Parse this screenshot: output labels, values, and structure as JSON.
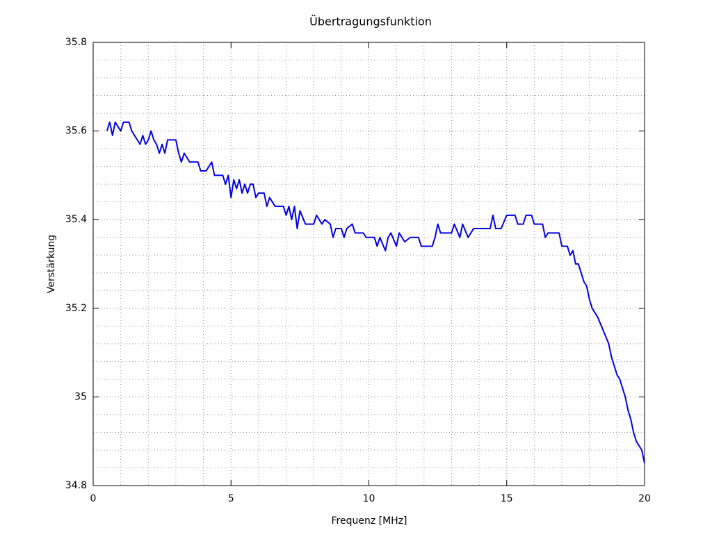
{
  "chart_data": {
    "type": "line",
    "title": "Übertragungsfunktion",
    "xlabel": "Frequenz [MHz]",
    "ylabel": "Verstärkung",
    "color": "#0000e6",
    "x": [
      0.5,
      0.6,
      0.7,
      0.8,
      0.9,
      1.0,
      1.1,
      1.2,
      1.3,
      1.4,
      1.5,
      1.6,
      1.7,
      1.8,
      1.9,
      2.0,
      2.1,
      2.2,
      2.3,
      2.4,
      2.5,
      2.6,
      2.7,
      3.0,
      3.1,
      3.2,
      3.3,
      3.5,
      3.8,
      3.9,
      4.1,
      4.3,
      4.4,
      4.7,
      4.8,
      4.9,
      5.0,
      5.1,
      5.2,
      5.3,
      5.4,
      5.5,
      5.6,
      5.7,
      5.8,
      5.9,
      6.0,
      6.2,
      6.3,
      6.4,
      6.6,
      6.9,
      7.0,
      7.1,
      7.2,
      7.3,
      7.4,
      7.5,
      7.7,
      8.0,
      8.1,
      8.3,
      8.4,
      8.6,
      8.7,
      8.8,
      9.0,
      9.1,
      9.2,
      9.4,
      9.5,
      9.8,
      9.9,
      10.2,
      10.3,
      10.4,
      10.6,
      10.7,
      10.8,
      11.0,
      11.1,
      11.3,
      11.5,
      11.8,
      11.9,
      12.3,
      12.4,
      12.5,
      12.6,
      13.0,
      13.1,
      13.3,
      13.4,
      13.6,
      13.8,
      14.0,
      14.4,
      14.5,
      14.6,
      14.8,
      15.0,
      15.3,
      15.4,
      15.6,
      15.7,
      15.9,
      16.0,
      16.3,
      16.4,
      16.5,
      16.9,
      17.0,
      17.2,
      17.3,
      17.4,
      17.5,
      17.6,
      17.7,
      17.8,
      17.9,
      18.0,
      18.1,
      18.3,
      18.5,
      18.7,
      18.8,
      19.0,
      19.1,
      19.3,
      19.4,
      19.5,
      19.6,
      19.7,
      19.9,
      20.0
    ],
    "values": [
      35.6,
      35.62,
      35.59,
      35.62,
      35.61,
      35.6,
      35.62,
      35.62,
      35.62,
      35.6,
      35.59,
      35.58,
      35.57,
      35.59,
      35.57,
      35.58,
      35.6,
      35.58,
      35.57,
      35.55,
      35.57,
      35.55,
      35.58,
      35.58,
      35.55,
      35.53,
      35.55,
      35.53,
      35.53,
      35.51,
      35.51,
      35.53,
      35.5,
      35.5,
      35.48,
      35.5,
      35.45,
      35.49,
      35.47,
      35.49,
      35.46,
      35.48,
      35.46,
      35.48,
      35.48,
      35.45,
      35.46,
      35.46,
      35.43,
      35.45,
      35.43,
      35.43,
      35.41,
      35.43,
      35.4,
      35.43,
      35.38,
      35.42,
      35.39,
      35.39,
      35.41,
      35.39,
      35.4,
      35.39,
      35.36,
      35.38,
      35.38,
      35.36,
      35.38,
      35.39,
      35.37,
      35.37,
      35.36,
      35.36,
      35.34,
      35.36,
      35.33,
      35.36,
      35.37,
      35.34,
      35.37,
      35.35,
      35.36,
      35.36,
      35.34,
      35.34,
      35.36,
      35.39,
      35.37,
      35.37,
      35.39,
      35.36,
      35.39,
      35.36,
      35.38,
      35.38,
      35.38,
      35.41,
      35.38,
      35.38,
      35.41,
      35.41,
      35.39,
      35.39,
      35.41,
      35.41,
      35.39,
      35.39,
      35.36,
      35.37,
      35.37,
      35.34,
      35.34,
      35.32,
      35.33,
      35.3,
      35.3,
      35.28,
      35.26,
      35.25,
      35.22,
      35.2,
      35.18,
      35.15,
      35.12,
      35.09,
      35.05,
      35.04,
      35.0,
      34.97,
      34.95,
      34.92,
      34.9,
      34.88,
      34.85
    ],
    "xlim": [
      0,
      20
    ],
    "xticks": [
      0,
      5,
      10,
      15,
      20
    ],
    "ylim": [
      34.8,
      35.8
    ],
    "yticks": [
      34.8,
      35,
      35.2,
      35.4,
      35.6,
      35.8
    ],
    "grid": true,
    "minor_grid_subdivisions": 5
  }
}
